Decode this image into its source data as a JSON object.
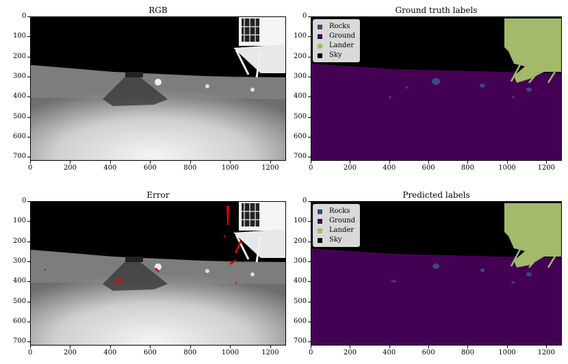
{
  "panels": {
    "rgb": {
      "title": "RGB"
    },
    "ground_truth": {
      "title": "Ground truth labels"
    },
    "error": {
      "title": "Error"
    },
    "predicted": {
      "title": "Predicted labels"
    }
  },
  "axes": {
    "x_ticks": [
      "0",
      "200",
      "400",
      "600",
      "800",
      "1000",
      "1200"
    ],
    "y_ticks": [
      "0",
      "100",
      "200",
      "300",
      "400",
      "500",
      "600",
      "700"
    ]
  },
  "legend": [
    {
      "label": "Rocks",
      "color": "#3b4a7a"
    },
    {
      "label": "Ground",
      "color": "#440154"
    },
    {
      "label": "Lander",
      "color": "#a3ba6b"
    },
    {
      "label": "Sky",
      "color": "#000000"
    }
  ],
  "colors": {
    "sky": "#000000",
    "ground": "#440154",
    "rocks": "#3b4a7a",
    "lander": "#a3ba6b",
    "error": "#e00000"
  }
}
